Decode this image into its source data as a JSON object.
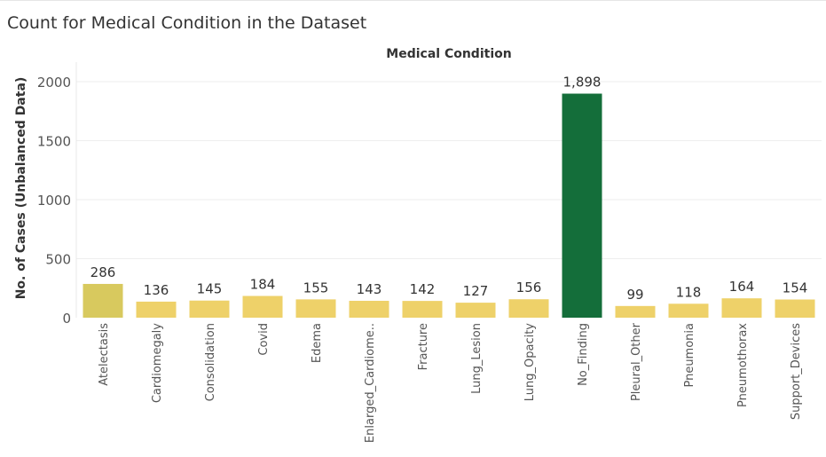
{
  "title": "Count for Medical Condition in the Dataset",
  "chart_data": {
    "type": "bar",
    "title": "Count for Medical Condition in the Dataset",
    "column_header": "Medical Condition",
    "xlabel": "",
    "ylabel": "No. of Cases (Unbalanced Data)",
    "ylim": [
      0,
      2150
    ],
    "yticks": [
      0,
      500,
      1000,
      1500,
      2000
    ],
    "ytick_labels": [
      "0",
      "500",
      "1000",
      "1500",
      "2000"
    ],
    "grid": true,
    "categories": [
      "Atelectasis",
      "Cardiomegaly",
      "Consolidation",
      "Covid",
      "Edema",
      "Enlarged_Cardiome..",
      "Fracture",
      "Lung_Lesion",
      "Lung_Opacity",
      "No_Finding",
      "Pleural_Other",
      "Pneumonia",
      "Pneumothorax",
      "Support_Devices"
    ],
    "values": [
      286,
      136,
      145,
      184,
      155,
      143,
      142,
      127,
      156,
      1898,
      99,
      118,
      164,
      154
    ],
    "value_labels": [
      "286",
      "136",
      "145",
      "184",
      "155",
      "143",
      "142",
      "127",
      "156",
      "1,898",
      "99",
      "118",
      "164",
      "154"
    ],
    "colors": [
      "#d8c95e",
      "#eed169",
      "#eed169",
      "#eed169",
      "#eed169",
      "#eed169",
      "#eed169",
      "#eed169",
      "#eed169",
      "#146e3a",
      "#eed169",
      "#eed169",
      "#eed169",
      "#eed169"
    ]
  }
}
